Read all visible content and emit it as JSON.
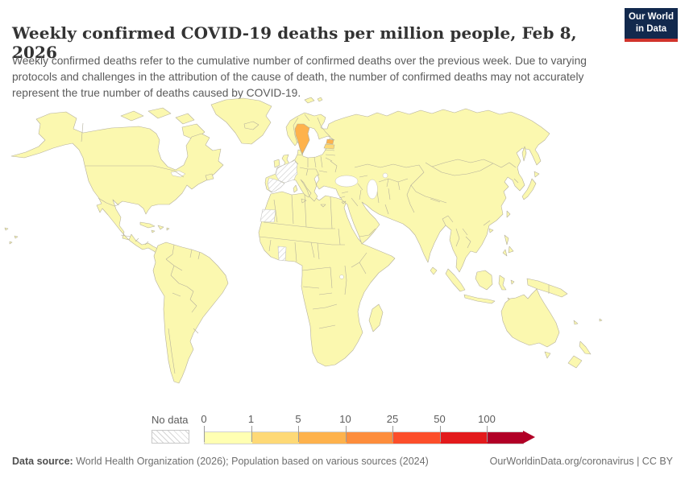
{
  "header": {
    "title": "Weekly confirmed COVID-19 deaths per million people, Feb 8, 2026",
    "subtitle": "Weekly confirmed deaths refer to the cumulative number of confirmed deaths over the previous week. Due to varying protocols and challenges in the attribution of the cause of death, the number of confirmed deaths may not accurately represent the true number of deaths caused by COVID-19."
  },
  "logo": {
    "line1": "Our World",
    "line2": "in Data"
  },
  "legend": {
    "no_data_label": "No data",
    "tick_labels": [
      "0",
      "1",
      "5",
      "10",
      "25",
      "50",
      "100"
    ]
  },
  "footer": {
    "source_label": "Data source:",
    "source_text": " World Health Organization (2026); Population based on various sources (2024)",
    "credit": "OurWorldinData.org/coronavirus | CC BY"
  },
  "theme": {
    "title_color": "#333333",
    "subtitle_color": "#5b5b5b",
    "legend_text": "#5b5b5b",
    "footer_color": "#6e6e6e",
    "logo_bg": "#12294d",
    "logo_red": "#d1342c",
    "map_default": "#FBF8AF",
    "map_border": "#b5b09c"
  },
  "chart_data": {
    "type": "heatmap",
    "subtype": "world_choropleth_map",
    "title": "Weekly confirmed COVID-19 deaths per million people",
    "date": "Feb 8, 2026",
    "scale": {
      "stops": [
        0,
        1,
        5,
        10,
        25,
        50,
        100
      ],
      "colors": [
        "#FFFFB2",
        "#FED976",
        "#FEB24C",
        "#FD8D3C",
        "#FC4E2A",
        "#E31A1C",
        "#B10026"
      ],
      "open_ended_max": true,
      "no_data_style": "white with gray diagonal hatching"
    },
    "regions": {
      "default_band": "0-1 (pale yellow, most countries worldwide)",
      "highlighted": [
        {
          "country": "Sweden",
          "band": "5-10"
        },
        {
          "country": "Estonia",
          "band": "5-10"
        },
        {
          "country": "Latvia",
          "band": "1-5"
        }
      ],
      "no_data": [
        "France",
        "Spain",
        "Western Sahara",
        "Ghana"
      ]
    }
  },
  "map": {
    "fills": [
      {
        "id": "sweden",
        "band_index": 2
      },
      {
        "id": "estonia",
        "band_index": 2
      },
      {
        "id": "latvia",
        "band_index": 1
      }
    ],
    "no_data_ids": [
      "france",
      "spain",
      "western-sahara",
      "ghana"
    ]
  }
}
